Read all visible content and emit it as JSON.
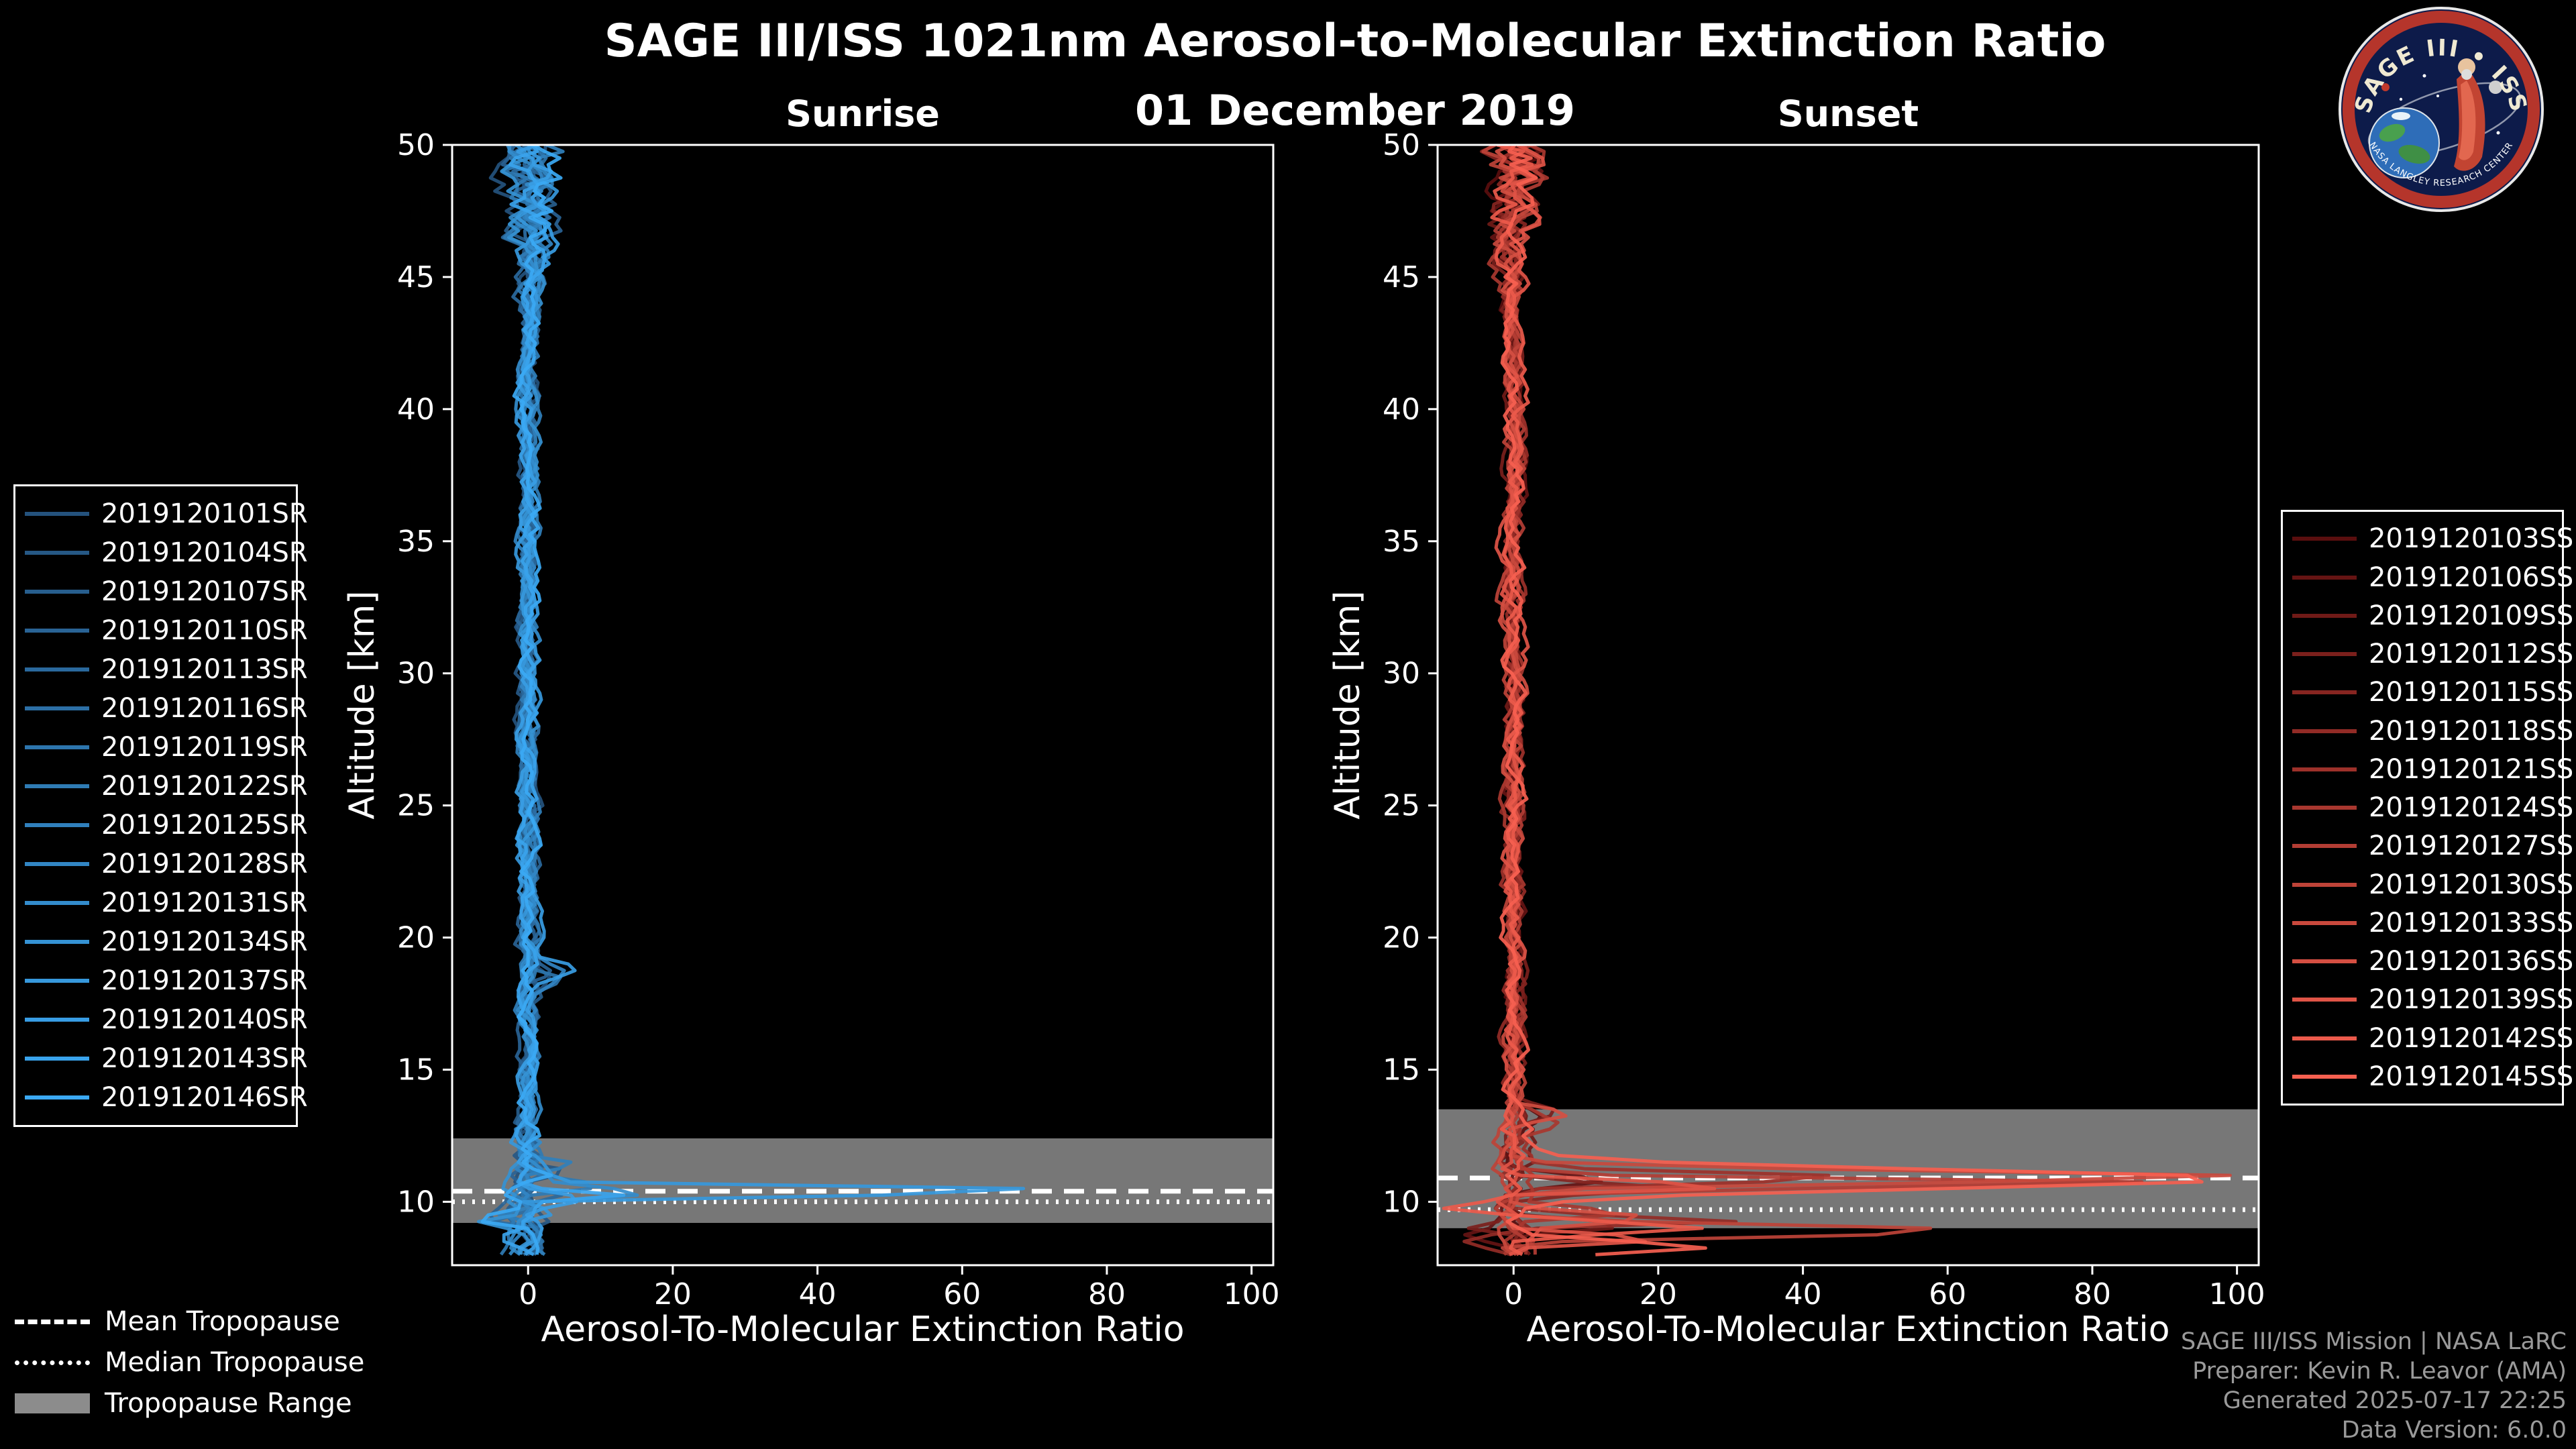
{
  "header": {
    "title": "SAGE III/ISS 1021nm Aerosol-to-Molecular Extinction Ratio",
    "date": "01 December 2019"
  },
  "logo": {
    "text": "SAGE III • ISS",
    "sub": "NASA LANGLEY RESEARCH CENTER"
  },
  "colors": {
    "background": "#000000",
    "foreground": "#ffffff",
    "tropopause_band": "#8c8c8c",
    "footer_text": "#9a9a9a",
    "sunrise_bright": "#3ba9f4",
    "sunset_bright": "#f66050"
  },
  "tropopause_legend": [
    {
      "label": "Mean Tropopause",
      "style": "dashed"
    },
    {
      "label": "Median Tropopause",
      "style": "dotted"
    },
    {
      "label": "Tropopause Range",
      "style": "band"
    }
  ],
  "footer": {
    "lines": [
      "SAGE III/ISS Mission | NASA LaRC",
      "Preparer: Kevin R. Leavor (AMA)",
      "Generated 2025-07-17 22:25",
      "Data Version: 6.0.0"
    ]
  },
  "chart_data": [
    {
      "type": "line",
      "title": "Sunrise",
      "xlabel": "Aerosol-To-Molecular Extinction Ratio",
      "ylabel": "Altitude [km]",
      "xlim": [
        -10.5,
        103
      ],
      "ylim": [
        7.6,
        50
      ],
      "x_ticks": [
        0,
        20,
        40,
        60,
        80,
        100
      ],
      "y_ticks": [
        10,
        15,
        20,
        25,
        30,
        35,
        40,
        45,
        50
      ],
      "alt_range": [
        7.9,
        50
      ],
      "step_km": 0.25,
      "tropopause": {
        "mean_km": 10.4,
        "median_km": 10.0,
        "range_km": [
          9.2,
          12.4
        ]
      },
      "legend_position": "left",
      "series": [
        {
          "name": "2019120101SR",
          "color": "#24527d",
          "seed": 1,
          "spikes": [
            [
              18.5,
              3,
              0.5
            ]
          ]
        },
        {
          "name": "2019120104SR",
          "color": "#265885",
          "seed": 2,
          "spikes": [
            [
              11.2,
              5,
              0.3
            ]
          ]
        },
        {
          "name": "2019120107SR",
          "color": "#275e8d",
          "seed": 3,
          "spikes": []
        },
        {
          "name": "2019120110SR",
          "color": "#296395",
          "seed": 4,
          "spikes": [
            [
              18.7,
              4,
              0.4
            ],
            [
              9.4,
              -5,
              0.2
            ]
          ]
        },
        {
          "name": "2019120113SR",
          "color": "#2a699d",
          "seed": 5,
          "spikes": [
            [
              10.2,
              7,
              0.25
            ]
          ]
        },
        {
          "name": "2019120116SR",
          "color": "#2c6fa5",
          "seed": 6,
          "spikes": [
            [
              9.3,
              -7,
              0.2
            ]
          ]
        },
        {
          "name": "2019120119SR",
          "color": "#2d75ad",
          "seed": 7,
          "spikes": [
            [
              18.4,
              5,
              0.4
            ]
          ]
        },
        {
          "name": "2019120122SR",
          "color": "#2f7bb4",
          "seed": 8,
          "spikes": [
            [
              10.6,
              9,
              0.25
            ]
          ]
        },
        {
          "name": "2019120125SR",
          "color": "#3080bc",
          "seed": 9,
          "spikes": [
            [
              11.4,
              7,
              0.3
            ],
            [
              9.5,
              -6,
              0.2
            ]
          ]
        },
        {
          "name": "2019120128SR",
          "color": "#3286c4",
          "seed": 10,
          "spikes": [
            [
              18.6,
              4,
              0.5
            ]
          ]
        },
        {
          "name": "2019120131SR",
          "color": "#338ccc",
          "seed": 11,
          "spikes": [
            [
              10.35,
              18,
              0.2
            ]
          ]
        },
        {
          "name": "2019120134SR",
          "color": "#3592d4",
          "seed": 12,
          "spikes": [
            [
              9.2,
              -8,
              0.25
            ]
          ]
        },
        {
          "name": "2019120137SR",
          "color": "#3698dc",
          "seed": 13,
          "spikes": [
            [
              10.4,
              88,
              0.2
            ],
            [
              9.6,
              5,
              0.2
            ]
          ]
        },
        {
          "name": "2019120140SR",
          "color": "#389de4",
          "seed": 14,
          "spikes": [
            [
              18.8,
              6,
              0.4
            ],
            [
              10.1,
              8,
              0.2
            ]
          ]
        },
        {
          "name": "2019120143SR",
          "color": "#39a3ec",
          "seed": 15,
          "spikes": [
            [
              10.25,
              13,
              0.2
            ],
            [
              8.6,
              -5,
              0.3
            ]
          ]
        },
        {
          "name": "2019120146SR",
          "color": "#3ba9f4",
          "seed": 16,
          "spikes": [
            [
              11.0,
              6,
              0.3
            ],
            [
              9.35,
              -7,
              0.2
            ]
          ]
        }
      ]
    },
    {
      "type": "line",
      "title": "Sunset",
      "xlabel": "Aerosol-To-Molecular Extinction Ratio",
      "ylabel": "Altitude [km]",
      "xlim": [
        -10.5,
        103
      ],
      "ylim": [
        7.6,
        50
      ],
      "x_ticks": [
        0,
        20,
        40,
        60,
        80,
        100
      ],
      "y_ticks": [
        10,
        15,
        20,
        25,
        30,
        35,
        40,
        45,
        50
      ],
      "alt_range": [
        7.9,
        50
      ],
      "step_km": 0.25,
      "tropopause": {
        "mean_km": 10.9,
        "median_km": 9.7,
        "range_km": [
          9.0,
          13.5
        ]
      },
      "legend_position": "right",
      "series": [
        {
          "name": "2019120103SS",
          "color": "#5a0e0e",
          "seed": 101,
          "spikes": [
            [
              13.2,
              5,
              0.4
            ]
          ]
        },
        {
          "name": "2019120106SS",
          "color": "#651413",
          "seed": 102,
          "spikes": [
            [
              10.8,
              12,
              0.3
            ],
            [
              8.7,
              -6,
              0.3
            ]
          ]
        },
        {
          "name": "2019120109SS",
          "color": "#701a17",
          "seed": 103,
          "spikes": [
            [
              9.1,
              16,
              0.25
            ]
          ]
        },
        {
          "name": "2019120112SS",
          "color": "#7b201c",
          "seed": 104,
          "spikes": [
            [
              13.4,
              7,
              0.4
            ],
            [
              9.0,
              -7,
              0.2
            ]
          ]
        },
        {
          "name": "2019120115SS",
          "color": "#872521",
          "seed": 105,
          "spikes": [
            [
              10.5,
              24,
              0.25
            ]
          ]
        },
        {
          "name": "2019120118SS",
          "color": "#922b26",
          "seed": 106,
          "spikes": [
            [
              9.3,
              32,
              0.2
            ],
            [
              8.5,
              -8,
              0.3
            ]
          ]
        },
        {
          "name": "2019120121SS",
          "color": "#9d312a",
          "seed": 107,
          "spikes": [
            [
              10.9,
              50,
              0.25
            ]
          ]
        },
        {
          "name": "2019120124SS",
          "color": "#a8372f",
          "seed": 108,
          "spikes": [
            [
              13.0,
              6,
              0.5
            ],
            [
              9.6,
              14,
              0.2
            ]
          ]
        },
        {
          "name": "2019120127SS",
          "color": "#b33d34",
          "seed": 109,
          "spikes": [
            [
              10.7,
              92,
              0.22
            ]
          ]
        },
        {
          "name": "2019120130SS",
          "color": "#be4338",
          "seed": 110,
          "spikes": [
            [
              8.9,
              65,
              0.3
            ],
            [
              8.4,
              -6,
              0.2
            ]
          ]
        },
        {
          "name": "2019120133SS",
          "color": "#c9493d",
          "seed": 111,
          "spikes": [
            [
              10.95,
              100,
              0.3
            ]
          ]
        },
        {
          "name": "2019120136SS",
          "color": "#d54f42",
          "seed": 112,
          "spikes": [
            [
              9.4,
              18,
              0.25
            ],
            [
              13.3,
              8,
              0.3
            ]
          ]
        },
        {
          "name": "2019120139SS",
          "color": "#e05447",
          "seed": 113,
          "spikes": [
            [
              10.6,
              38,
              0.2
            ],
            [
              8.6,
              22,
              0.25
            ]
          ]
        },
        {
          "name": "2019120142SS",
          "color": "#eb5a4b",
          "seed": 114,
          "spikes": [
            [
              9.0,
              28,
              0.3
            ],
            [
              9.8,
              -8,
              0.2
            ]
          ]
        },
        {
          "name": "2019120145SS",
          "color": "#f66050",
          "seed": 115,
          "spikes": [
            [
              10.85,
              98,
              0.5
            ],
            [
              8.3,
              26,
              0.3
            ]
          ]
        }
      ]
    }
  ]
}
